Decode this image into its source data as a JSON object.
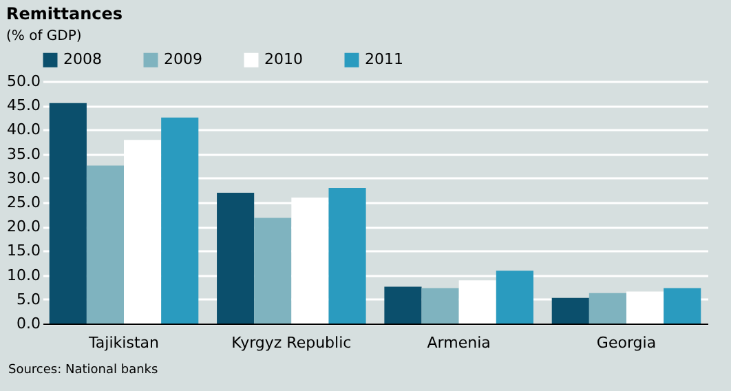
{
  "chart_data": {
    "type": "bar",
    "title": "Remittances",
    "subtitle": "(% of GDP)",
    "categories": [
      "Tajikistan",
      "Kyrgyz Republic",
      "Armenia",
      "Georgia"
    ],
    "series": [
      {
        "name": "2008",
        "color": "#0b4f6c",
        "values": [
          45.5,
          27.0,
          7.6,
          5.3
        ]
      },
      {
        "name": "2009",
        "color": "#7fb3bf",
        "values": [
          32.6,
          21.8,
          7.3,
          6.3
        ]
      },
      {
        "name": "2010",
        "color": "#ffffff",
        "values": [
          37.9,
          26.0,
          8.9,
          6.6
        ]
      },
      {
        "name": "2011",
        "color": "#2a9bbf",
        "values": [
          42.5,
          28.0,
          10.9,
          7.3
        ]
      }
    ],
    "ylim": [
      0,
      50
    ],
    "yticks": [
      {
        "value": 0,
        "label": "0.0"
      },
      {
        "value": 5,
        "label": "5.0"
      },
      {
        "value": 10,
        "label": "10.0"
      },
      {
        "value": 15,
        "label": "15.0"
      },
      {
        "value": 20,
        "label": "20.0"
      },
      {
        "value": 25,
        "label": "25.0"
      },
      {
        "value": 30,
        "label": "30.0"
      },
      {
        "value": 35,
        "label": "35.0"
      },
      {
        "value": 40,
        "label": "40.0"
      },
      {
        "value": 45,
        "label": "45.0"
      },
      {
        "value": 50,
        "label": "50.0"
      }
    ],
    "grid": "y",
    "legend": "top left",
    "annotations": [
      "Sources: National banks"
    ]
  }
}
